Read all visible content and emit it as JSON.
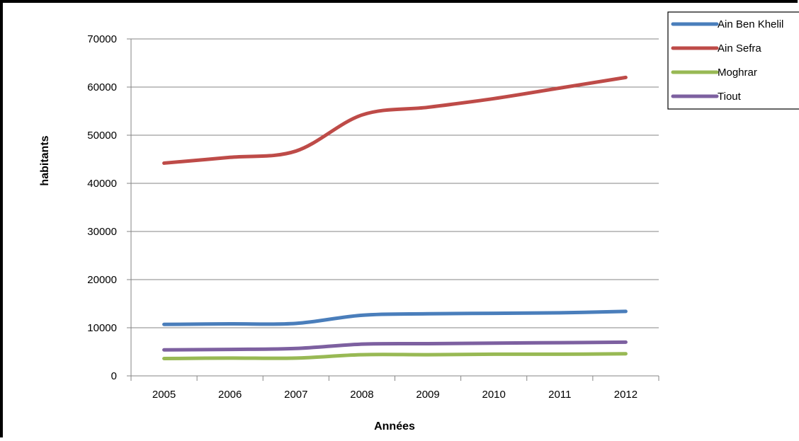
{
  "chart_data": {
    "type": "line",
    "title": "",
    "xlabel": "Années",
    "ylabel": "habitants",
    "x": [
      "2005",
      "2006",
      "2007",
      "2008",
      "2009",
      "2010",
      "2011",
      "2012"
    ],
    "ylim": [
      0,
      70000
    ],
    "yticks": [
      0,
      10000,
      20000,
      30000,
      40000,
      50000,
      60000,
      70000
    ],
    "grid": true,
    "legend_position": "top-right",
    "series": [
      {
        "name": "Ain Ben Khelil",
        "color": "#4a7ebb",
        "values": [
          10700,
          10800,
          10900,
          12600,
          12900,
          13000,
          13100,
          13400
        ]
      },
      {
        "name": "Ain Sefra",
        "color": "#be4b48",
        "values": [
          44200,
          45400,
          46700,
          54200,
          55800,
          57600,
          59800,
          62000
        ]
      },
      {
        "name": "Moghrar",
        "color": "#98b954",
        "values": [
          3600,
          3700,
          3700,
          4400,
          4400,
          4500,
          4500,
          4600
        ]
      },
      {
        "name": "Tiout",
        "color": "#7d60a0",
        "values": [
          5400,
          5500,
          5700,
          6600,
          6700,
          6800,
          6900,
          7000
        ]
      }
    ]
  }
}
